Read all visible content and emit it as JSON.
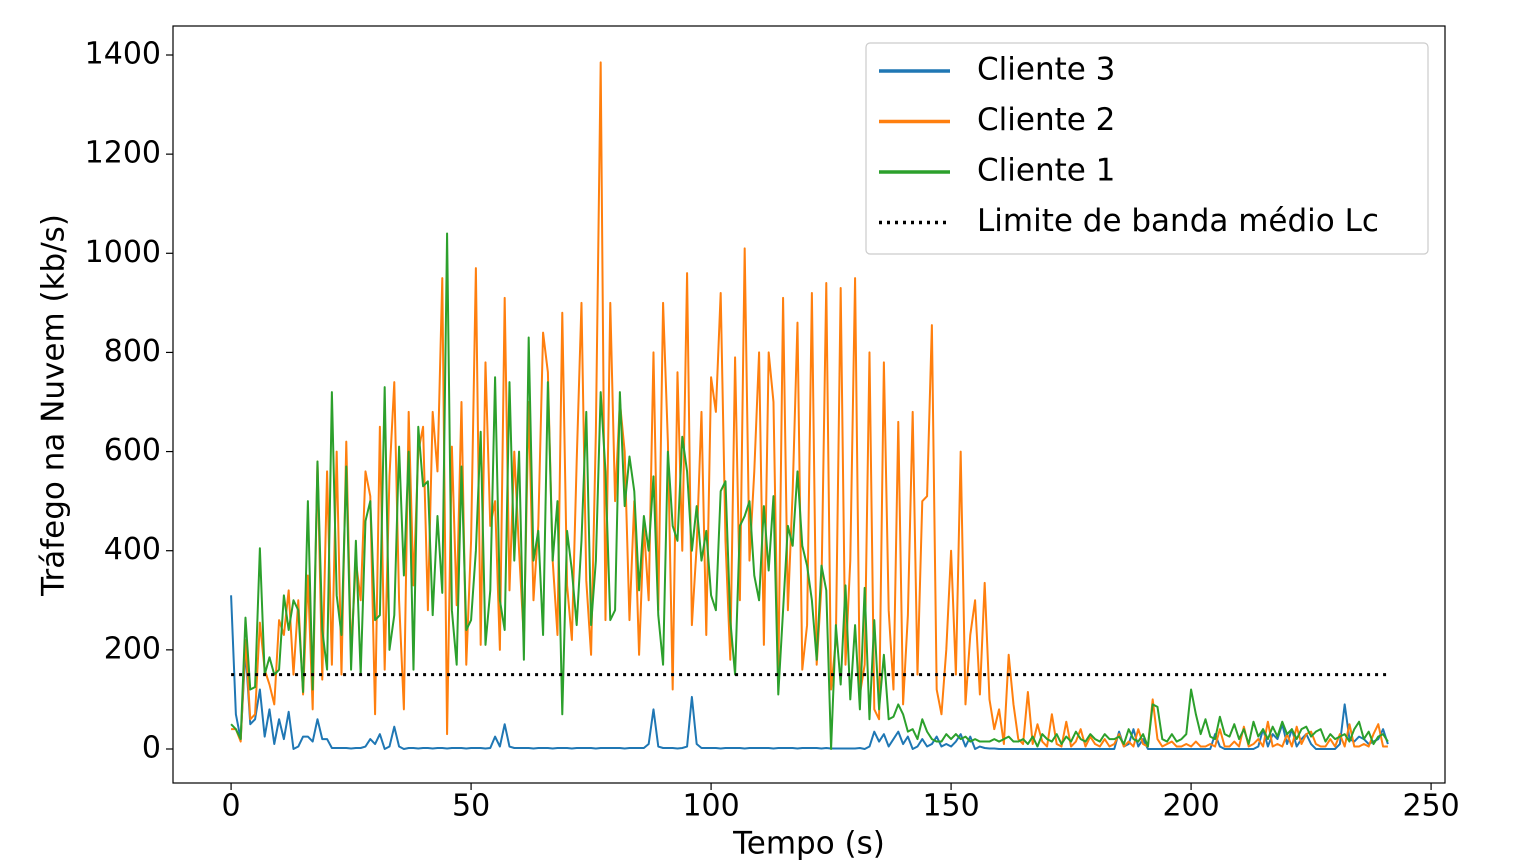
{
  "chart_data": {
    "type": "line",
    "xlabel": "Tempo (s)",
    "ylabel": "Tráfego na Nuvem (kb/s)",
    "xlim": [
      -12.1,
      252.9
    ],
    "ylim": [
      -68.6,
      1458.5
    ],
    "xticks": [
      0,
      50,
      100,
      150,
      200,
      250
    ],
    "yticks": [
      0,
      200,
      400,
      600,
      800,
      1000,
      1200,
      1400
    ],
    "grid": false,
    "legend": "upper right",
    "x": [
      0,
      1,
      2,
      3,
      4,
      5,
      6,
      7,
      8,
      9,
      10,
      11,
      12,
      13,
      14,
      15,
      16,
      17,
      18,
      19,
      20,
      21,
      22,
      23,
      24,
      25,
      26,
      27,
      28,
      29,
      30,
      31,
      32,
      33,
      34,
      35,
      36,
      37,
      38,
      39,
      40,
      41,
      42,
      43,
      44,
      45,
      46,
      47,
      48,
      49,
      50,
      51,
      52,
      53,
      54,
      55,
      56,
      57,
      58,
      59,
      60,
      61,
      62,
      63,
      64,
      65,
      66,
      67,
      68,
      69,
      70,
      71,
      72,
      73,
      74,
      75,
      76,
      77,
      78,
      79,
      80,
      81,
      82,
      83,
      84,
      85,
      86,
      87,
      88,
      89,
      90,
      91,
      92,
      93,
      94,
      95,
      96,
      97,
      98,
      99,
      100,
      101,
      102,
      103,
      104,
      105,
      106,
      107,
      108,
      109,
      110,
      111,
      112,
      113,
      114,
      115,
      116,
      117,
      118,
      119,
      120,
      121,
      122,
      123,
      124,
      125,
      126,
      127,
      128,
      129,
      130,
      131,
      132,
      133,
      134,
      135,
      136,
      137,
      138,
      139,
      140,
      141,
      142,
      143,
      144,
      145,
      146,
      147,
      148,
      149,
      150,
      151,
      152,
      153,
      154,
      155,
      156,
      157,
      158,
      159,
      160,
      161,
      162,
      163,
      164,
      165,
      166,
      167,
      168,
      169,
      170,
      171,
      172,
      173,
      174,
      175,
      176,
      177,
      178,
      179,
      180,
      181,
      182,
      183,
      184,
      185,
      186,
      187,
      188,
      189,
      190,
      191,
      192,
      193,
      194,
      195,
      196,
      197,
      198,
      199,
      200,
      201,
      202,
      203,
      204,
      205,
      206,
      207,
      208,
      209,
      210,
      211,
      212,
      213,
      214,
      215,
      216,
      217,
      218,
      219,
      220,
      221,
      222,
      223,
      224,
      225,
      226,
      227,
      228,
      229,
      230,
      231,
      232,
      233,
      234,
      235,
      236,
      237,
      238,
      239,
      240,
      241
    ],
    "series": [
      {
        "name": "Cliente 3",
        "color": "#1f77b4",
        "values": [
          310,
          70,
          20,
          200,
          50,
          60,
          120,
          25,
          80,
          10,
          60,
          20,
          75,
          0,
          5,
          25,
          25,
          15,
          60,
          20,
          20,
          2,
          2,
          2,
          2,
          1,
          2,
          2,
          5,
          20,
          10,
          30,
          0,
          5,
          45,
          5,
          0,
          2,
          2,
          1,
          2,
          2,
          1,
          2,
          2,
          1,
          2,
          2,
          2,
          1,
          2,
          2,
          2,
          1,
          2,
          25,
          5,
          50,
          5,
          2,
          2,
          2,
          2,
          1,
          2,
          2,
          2,
          1,
          2,
          2,
          2,
          1,
          2,
          2,
          2,
          2,
          1,
          2,
          2,
          2,
          2,
          2,
          1,
          2,
          2,
          2,
          2,
          10,
          80,
          5,
          2,
          2,
          2,
          1,
          2,
          5,
          105,
          10,
          2,
          2,
          2,
          2,
          1,
          2,
          2,
          2,
          2,
          1,
          2,
          2,
          2,
          2,
          2,
          1,
          2,
          2,
          2,
          2,
          1,
          2,
          2,
          2,
          2,
          1,
          2,
          1,
          1,
          1,
          1,
          1,
          1,
          2,
          0,
          5,
          35,
          15,
          30,
          5,
          20,
          35,
          10,
          25,
          0,
          5,
          20,
          5,
          10,
          25,
          5,
          10,
          5,
          15,
          30,
          5,
          25,
          0,
          5,
          2,
          1,
          1,
          0,
          0,
          0,
          0,
          0,
          0,
          0,
          0,
          0,
          0,
          0,
          0,
          0,
          0,
          0,
          0,
          0,
          0,
          0,
          0,
          0,
          0,
          0,
          0,
          0,
          35,
          5,
          10,
          40,
          5,
          20,
          0,
          0,
          0,
          0,
          0,
          0,
          0,
          0,
          0,
          0,
          0,
          0,
          0,
          0,
          30,
          5,
          0,
          0,
          0,
          0,
          0,
          0,
          0,
          5,
          40,
          5,
          30,
          20,
          50,
          10,
          40,
          5,
          20,
          30,
          10,
          0,
          0,
          0,
          0,
          0,
          10,
          90,
          20,
          15,
          25,
          20,
          10,
          15,
          20,
          40,
          10
        ]
      },
      {
        "name": "Cliente 2",
        "color": "#ff7f0e",
        "values": [
          40,
          40,
          15,
          220,
          60,
          70,
          255,
          160,
          130,
          90,
          260,
          230,
          320,
          150,
          300,
          110,
          350,
          80,
          580,
          140,
          560,
          170,
          600,
          150,
          620,
          190,
          380,
          300,
          560,
          510,
          70,
          650,
          160,
          550,
          740,
          300,
          80,
          680,
          330,
          600,
          650,
          280,
          680,
          560,
          950,
          30,
          610,
          290,
          700,
          170,
          420,
          970,
          210,
          780,
          450,
          500,
          200,
          910,
          320,
          600,
          400,
          220,
          700,
          300,
          450,
          840,
          760,
          380,
          230,
          880,
          330,
          220,
          580,
          900,
          340,
          190,
          640,
          1385,
          260,
          900,
          500,
          700,
          600,
          260,
          500,
          190,
          450,
          300,
          800,
          280,
          900,
          620,
          120,
          760,
          400,
          960,
          250,
          410,
          680,
          230,
          750,
          680,
          920,
          420,
          180,
          790,
          300,
          1010,
          380,
          560,
          800,
          210,
          800,
          700,
          140,
          910,
          280,
          520,
          860,
          160,
          250,
          920,
          170,
          330,
          940,
          120,
          220,
          930,
          170,
          380,
          950,
          110,
          170,
          800,
          80,
          60,
          780,
          280,
          120,
          660,
          90,
          270,
          680,
          150,
          500,
          510,
          855,
          120,
          70,
          200,
          400,
          150,
          600,
          90,
          230,
          300,
          110,
          335,
          100,
          40,
          80,
          10,
          190,
          90,
          20,
          10,
          115,
          10,
          50,
          15,
          5,
          70,
          10,
          5,
          55,
          5,
          15,
          40,
          5,
          25,
          10,
          5,
          20,
          5,
          10,
          30,
          5,
          15,
          5,
          40,
          10,
          5,
          100,
          20,
          5,
          10,
          15,
          5,
          5,
          10,
          5,
          15,
          5,
          5,
          10,
          5,
          40,
          5,
          5,
          15,
          5,
          45,
          5,
          10,
          20,
          5,
          55,
          5,
          10,
          5,
          30,
          5,
          45,
          10,
          30,
          35,
          10,
          5,
          5,
          20,
          5,
          30,
          5,
          50,
          5,
          5,
          10,
          5,
          30,
          50,
          5,
          5
        ]
      },
      {
        "name": "Cliente 1",
        "color": "#2ca02c",
        "values": [
          50,
          40,
          20,
          265,
          120,
          125,
          405,
          150,
          185,
          150,
          160,
          310,
          240,
          300,
          280,
          115,
          500,
          120,
          580,
          240,
          160,
          720,
          310,
          230,
          570,
          160,
          420,
          150,
          460,
          500,
          260,
          270,
          730,
          200,
          270,
          610,
          350,
          600,
          160,
          650,
          530,
          540,
          270,
          470,
          315,
          1040,
          280,
          170,
          570,
          240,
          260,
          400,
          640,
          210,
          320,
          750,
          300,
          240,
          740,
          380,
          600,
          180,
          830,
          380,
          440,
          230,
          740,
          380,
          500,
          70,
          440,
          360,
          250,
          420,
          680,
          250,
          380,
          720,
          560,
          260,
          280,
          720,
          490,
          590,
          520,
          320,
          470,
          400,
          550,
          270,
          170,
          600,
          450,
          420,
          630,
          560,
          400,
          490,
          380,
          440,
          310,
          280,
          520,
          540,
          260,
          150,
          450,
          470,
          500,
          350,
          300,
          490,
          360,
          510,
          110,
          280,
          450,
          410,
          560,
          410,
          370,
          300,
          180,
          370,
          320,
          0,
          250,
          130,
          330,
          100,
          250,
          80,
          325,
          60,
          260,
          80,
          190,
          60,
          65,
          90,
          70,
          35,
          40,
          20,
          60,
          35,
          20,
          15,
          15,
          30,
          20,
          30,
          20,
          25,
          15,
          20,
          15,
          15,
          15,
          20,
          15,
          20,
          25,
          15,
          15,
          20,
          10,
          25,
          5,
          30,
          20,
          15,
          30,
          10,
          25,
          15,
          35,
          20,
          15,
          30,
          20,
          15,
          30,
          20,
          20,
          25,
          10,
          40,
          20,
          15,
          30,
          5,
          90,
          85,
          20,
          15,
          30,
          15,
          20,
          30,
          120,
          70,
          30,
          60,
          25,
          20,
          65,
          30,
          25,
          50,
          20,
          40,
          10,
          55,
          25,
          40,
          20,
          45,
          25,
          55,
          30,
          40,
          20,
          40,
          45,
          25,
          35,
          40,
          15,
          30,
          20,
          25,
          30,
          15,
          40,
          55,
          20,
          35,
          10,
          25,
          30,
          15
        ]
      }
    ],
    "hline": {
      "name": "Limite de banda médio Lc",
      "value": 150,
      "xmin": 0,
      "xmax": 241,
      "color": "#000000"
    }
  }
}
